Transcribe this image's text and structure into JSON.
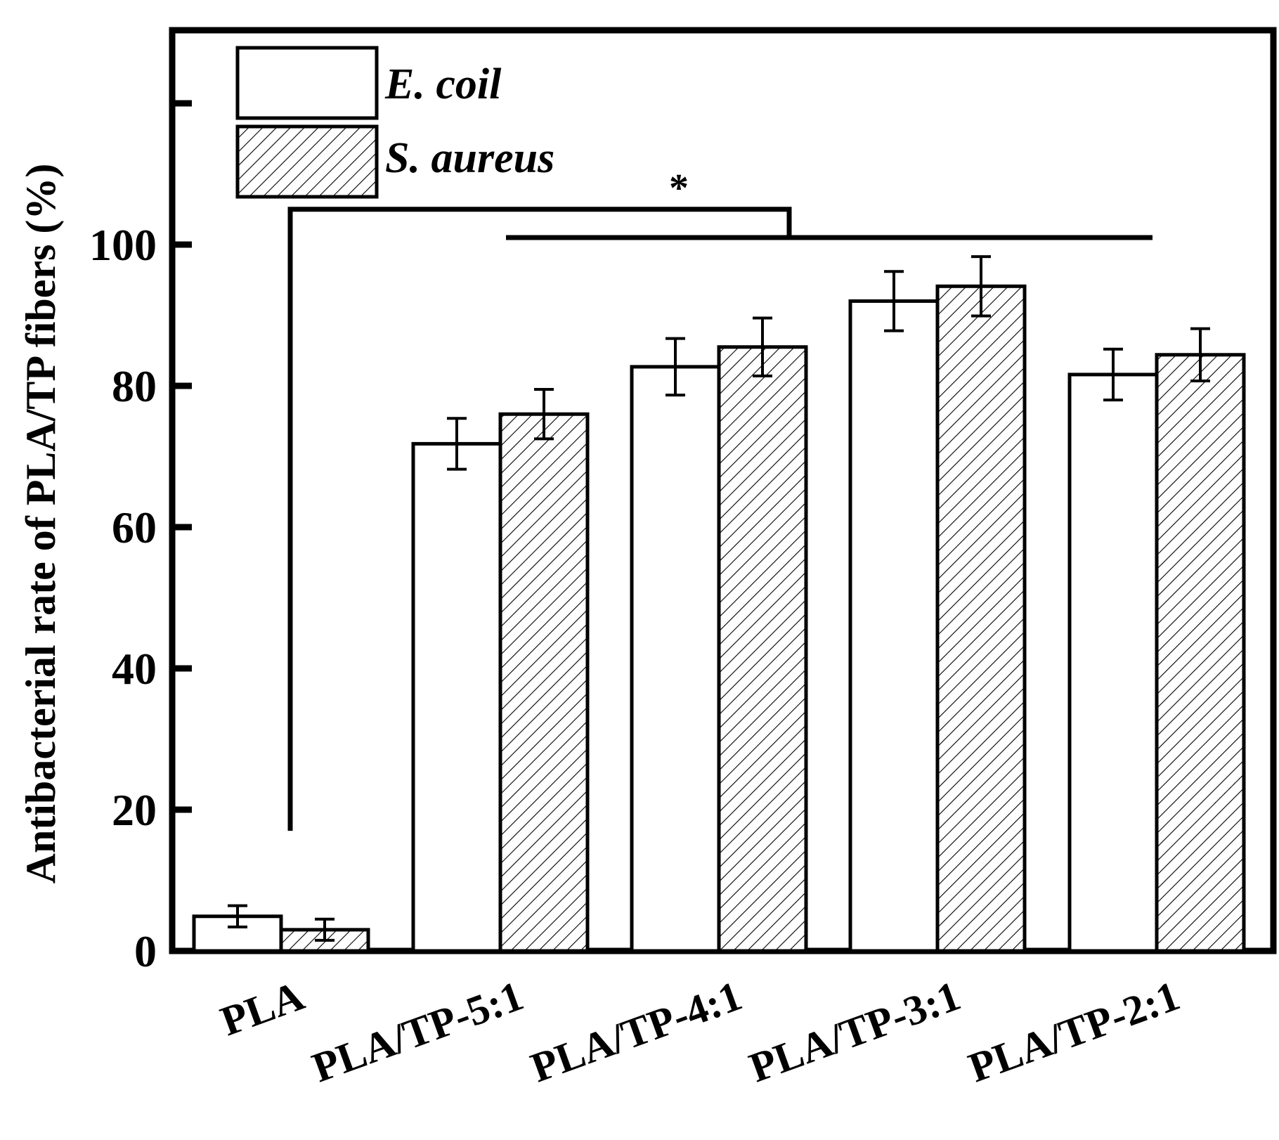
{
  "chart_data": {
    "type": "bar",
    "title": "",
    "xlabel": "",
    "ylabel": "Antibacterial rate of PLA/TP fibers (%)",
    "ylim": [
      0,
      130
    ],
    "yticks": [
      0,
      20,
      40,
      60,
      80,
      100
    ],
    "minor_tick_values": [
      120
    ],
    "categories": [
      "PLA",
      "PLA/TP-5:1",
      "PLA/TP-4:1",
      "PLA/TP-3:1",
      "PLA/TP-2:1"
    ],
    "series": [
      {
        "name": "E. coil",
        "pattern": "plain",
        "values": [
          4.9,
          71.8,
          82.7,
          92.0,
          81.6
        ],
        "errors": [
          1.5,
          3.6,
          4.0,
          4.2,
          3.6
        ]
      },
      {
        "name": "S. aureus",
        "pattern": "hatched",
        "values": [
          3.0,
          76.0,
          85.5,
          94.1,
          84.4
        ],
        "errors": [
          1.5,
          3.5,
          4.1,
          4.2,
          3.7
        ]
      }
    ],
    "legend_position": "top-left",
    "grid": false,
    "significance": {
      "label": "*",
      "left_bracket_bottom": 17,
      "left_bracket_top": 105,
      "top_bracket_value": 101,
      "spans_categories": [
        "PLA/TP-5:1",
        "PLA/TP-2:1"
      ]
    },
    "colors": {
      "bar_fill": "#ffffff",
      "outline": "#000000",
      "hatch": "#000000"
    }
  }
}
